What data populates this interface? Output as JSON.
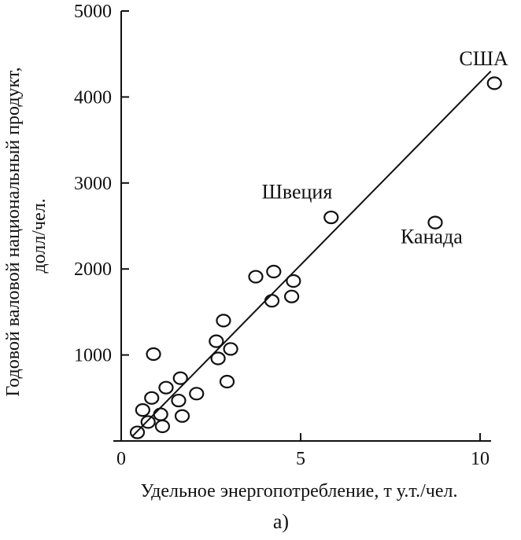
{
  "chart_data": {
    "type": "scatter",
    "xlabel": "Удельное энергопотребление, т у.т./чел.",
    "ylabel_line1": "Годовой валовой национальный продукт,",
    "ylabel_line2": "долл/чел.",
    "caption": "а)",
    "xlim": [
      0,
      10.5
    ],
    "ylim": [
      0,
      5000
    ],
    "x_ticks": [
      0,
      5,
      10
    ],
    "y_ticks": [
      1000,
      2000,
      3000,
      4000,
      5000
    ],
    "grid": false,
    "points": [
      {
        "x": 0.45,
        "y": 100
      },
      {
        "x": 0.6,
        "y": 360
      },
      {
        "x": 0.75,
        "y": 220
      },
      {
        "x": 0.85,
        "y": 500
      },
      {
        "x": 0.9,
        "y": 1010
      },
      {
        "x": 1.1,
        "y": 310
      },
      {
        "x": 1.15,
        "y": 170
      },
      {
        "x": 1.25,
        "y": 620
      },
      {
        "x": 1.6,
        "y": 470
      },
      {
        "x": 1.65,
        "y": 730
      },
      {
        "x": 1.7,
        "y": 290
      },
      {
        "x": 2.1,
        "y": 550
      },
      {
        "x": 2.65,
        "y": 1160
      },
      {
        "x": 2.7,
        "y": 960
      },
      {
        "x": 2.85,
        "y": 1400
      },
      {
        "x": 2.95,
        "y": 690
      },
      {
        "x": 3.05,
        "y": 1070
      },
      {
        "x": 3.75,
        "y": 1910
      },
      {
        "x": 4.2,
        "y": 1630
      },
      {
        "x": 4.25,
        "y": 1970
      },
      {
        "x": 4.75,
        "y": 1680
      },
      {
        "x": 4.8,
        "y": 1860
      },
      {
        "x": 5.85,
        "y": 2600
      },
      {
        "x": 8.75,
        "y": 2540
      },
      {
        "x": 10.4,
        "y": 4160
      }
    ],
    "trend_line": {
      "x": [
        0.3,
        10.3
      ],
      "y": [
        50,
        4300
      ]
    },
    "annotations": [
      {
        "text": "США",
        "x": 10.1,
        "y": 4370
      },
      {
        "text": "Швеция",
        "x": 4.9,
        "y": 2820
      },
      {
        "text": "Канада",
        "x": 8.65,
        "y": 2300
      }
    ]
  }
}
